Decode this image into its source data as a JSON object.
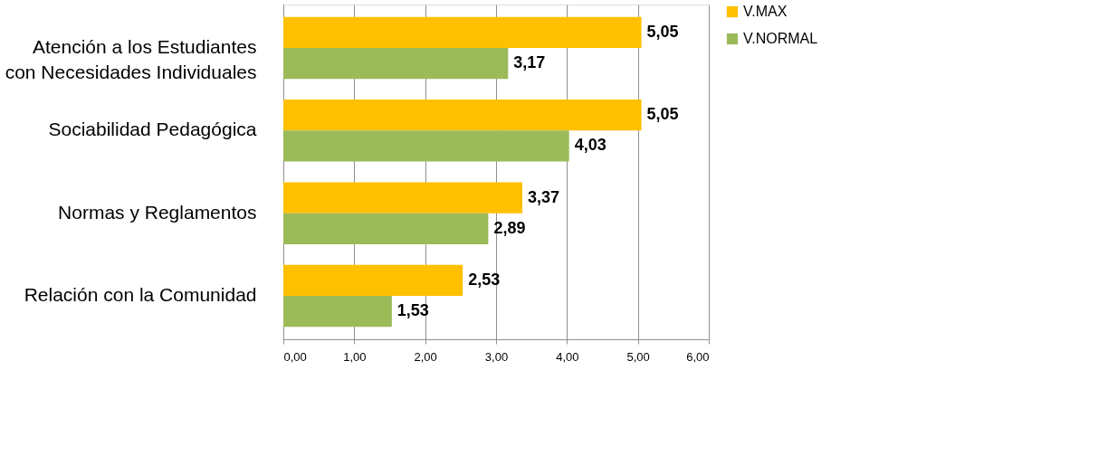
{
  "chart_data": {
    "type": "bar",
    "orientation": "horizontal",
    "categories": [
      "Atención a los Estudiantes con Necesidades Individuales",
      "Sociabilidad Pedagógica",
      "Normas y Reglamentos",
      "Relación con la Comunidad"
    ],
    "series": [
      {
        "name": "V.MAX",
        "color": "#ffc000",
        "values": [
          5.05,
          5.05,
          3.37,
          2.53
        ],
        "value_labels": [
          "5,05",
          "5,05",
          "3,37",
          "2,53"
        ]
      },
      {
        "name": "V.NORMAL",
        "color": "#9bbb59",
        "values": [
          3.17,
          4.03,
          2.89,
          1.53
        ],
        "value_labels": [
          "3,17",
          "4,03",
          "2,89",
          "1,53"
        ]
      }
    ],
    "xlim": [
      0,
      6
    ],
    "xticks": [
      {
        "value": 0,
        "label": "0,00"
      },
      {
        "value": 1,
        "label": "1,00"
      },
      {
        "value": 2,
        "label": "2,00"
      },
      {
        "value": 3,
        "label": "3,00"
      },
      {
        "value": 4,
        "label": "4,00"
      },
      {
        "value": 5,
        "label": "5,00"
      },
      {
        "value": 6,
        "label": "6,00"
      }
    ],
    "grid": "x",
    "legend": "right"
  }
}
